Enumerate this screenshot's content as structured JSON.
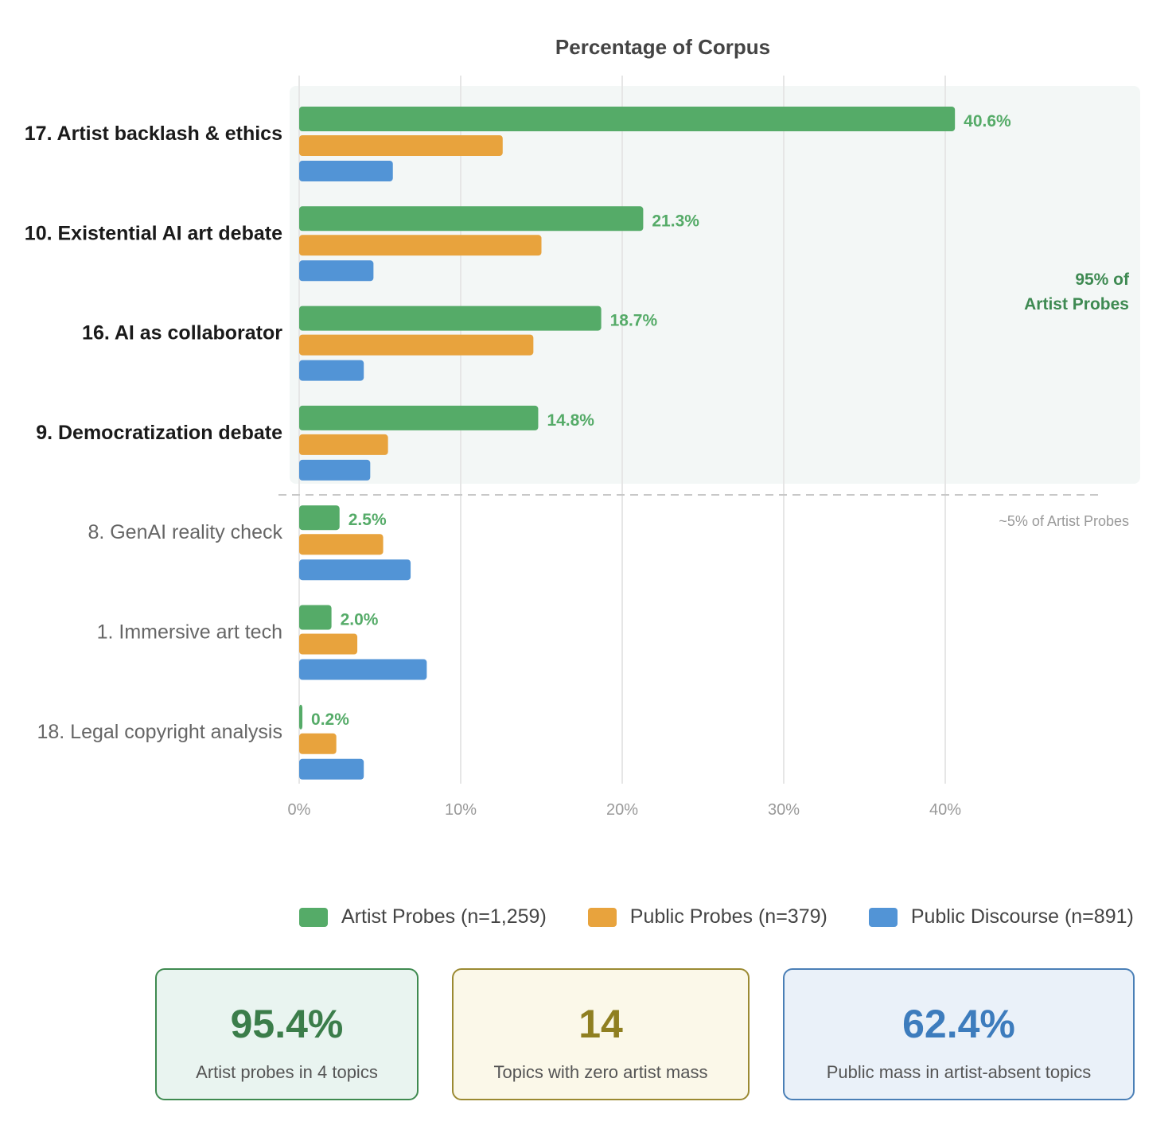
{
  "chart_data": {
    "type": "bar",
    "orientation": "horizontal",
    "title": "Percentage of Corpus",
    "categories": [
      "17. Artist backlash & ethics",
      "10. Existential AI art debate",
      "16. AI as collaborator",
      "9. Democratization debate",
      "8. GenAI reality check",
      "1. Immersive art tech",
      "18. Legal copyright analysis"
    ],
    "highlighted_categories": [
      0,
      1,
      2,
      3
    ],
    "series": [
      {
        "name": "Artist Probes (n=1,259)",
        "color": "#55ab68",
        "values": [
          40.6,
          21.3,
          18.7,
          14.8,
          2.5,
          2.0,
          0.2
        ],
        "data_labels": [
          "40.6%",
          "21.3%",
          "18.7%",
          "14.8%",
          "2.5%",
          "2.0%",
          "0.2%"
        ]
      },
      {
        "name": "Public Probes (n=379)",
        "color": "#e8a33d",
        "values": [
          12.6,
          15.0,
          14.5,
          5.5,
          5.2,
          3.6,
          2.3
        ]
      },
      {
        "name": "Public Discourse (n=891)",
        "color": "#5294d6",
        "values": [
          5.8,
          4.6,
          4.0,
          4.4,
          6.9,
          7.9,
          4.0
        ]
      }
    ],
    "x_ticks": [
      "0%",
      "10%",
      "20%",
      "30%",
      "40%"
    ],
    "x_tick_values": [
      0,
      10,
      20,
      30,
      40
    ],
    "xlim": [
      0,
      50
    ],
    "grid": true,
    "legend_position": "bottom",
    "annotations": {
      "highlight_region_label": [
        "95% of",
        "Artist Probes"
      ],
      "lower_region_label": "~5% of Artist Probes"
    }
  },
  "colors": {
    "green": "#55ab68",
    "orange": "#e8a33d",
    "blue": "#5294d6",
    "green_text": "#3e8a52",
    "highlight_bg": "#f3f7f6"
  },
  "stats": [
    {
      "value": "95.4%",
      "label": "Artist probes in 4 topics",
      "color": "#3b7d4a",
      "bg": "#e9f4f0",
      "border": "#3f8a50"
    },
    {
      "value": "14",
      "label": "Topics with zero artist mass",
      "color": "#8f7f21",
      "bg": "#fbf8e9",
      "border": "#9b8a32"
    },
    {
      "value": "62.4%",
      "label": "Public mass in artist-absent topics",
      "color": "#3d7cbd",
      "bg": "#eaf1f9",
      "border": "#4a7fb6"
    }
  ]
}
